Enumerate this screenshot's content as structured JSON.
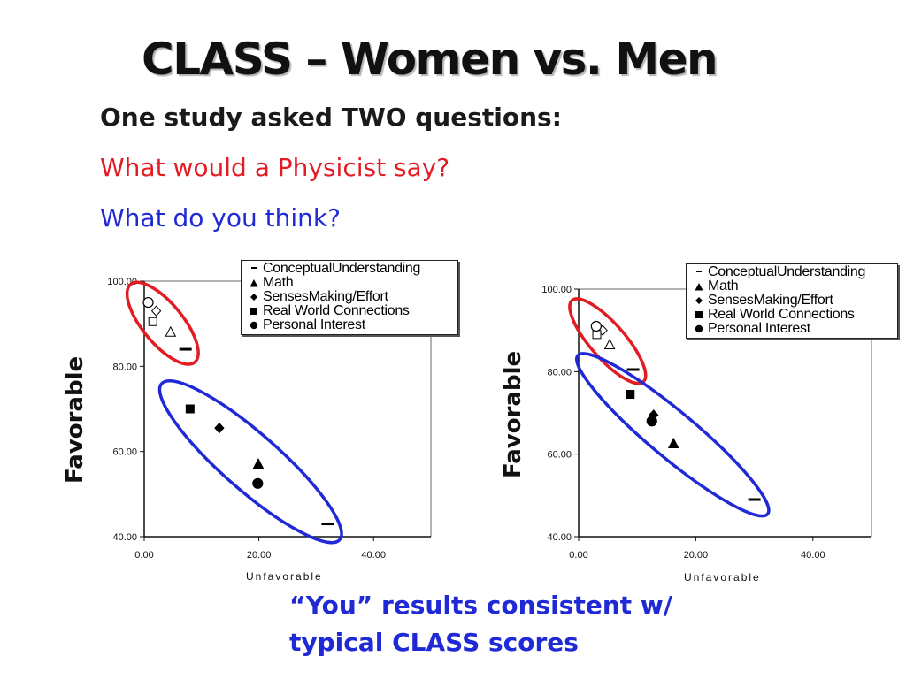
{
  "slide": {
    "title": "CLASS – Women vs. Men",
    "subtitle_lines": [
      "One study asked TWO questions:",
      "What would a Physicist say?",
      "What do you think?"
    ],
    "caption_lines": [
      "“You” results consistent w/",
      "typical CLASS scores"
    ],
    "colors": {
      "physicist_red": "#e31b23",
      "you_blue": "#1f2ad6"
    }
  },
  "chart_data": [
    {
      "type": "scatter",
      "xlabel": "Unfavorable",
      "ylabel": "Favorable",
      "xlim": [
        0,
        50
      ],
      "ylim": [
        40,
        100
      ],
      "xticks": [
        "0.00",
        "20.00",
        "40.00"
      ],
      "yticks": [
        "40.00",
        "60.00",
        "80.00",
        "100.00"
      ],
      "legend": {
        "placement": "top-right",
        "entries": [
          {
            "label": "ConceptualUnderstanding",
            "marker": "dash"
          },
          {
            "label": "Math",
            "marker": "triangle"
          },
          {
            "label": "SensesMaking/Effort",
            "marker": "diamond"
          },
          {
            "label": "Real World Connections",
            "marker": "square"
          },
          {
            "label": "Personal Interest",
            "marker": "circle"
          }
        ]
      },
      "series": [
        {
          "name": "ConceptualUnderstanding",
          "marker": "dash",
          "points": [
            {
              "x": 7.2,
              "y": 84,
              "group": "physicist"
            },
            {
              "x": 32.0,
              "y": 43,
              "group": "you"
            }
          ]
        },
        {
          "name": "Math",
          "marker": "triangle",
          "points": [
            {
              "x": 4.6,
              "y": 88,
              "group": "physicist"
            },
            {
              "x": 19.9,
              "y": 57,
              "group": "you"
            }
          ]
        },
        {
          "name": "SensesMaking/Effort",
          "marker": "diamond",
          "points": [
            {
              "x": 2.1,
              "y": 93,
              "group": "physicist"
            },
            {
              "x": 13.1,
              "y": 65.5,
              "group": "you"
            }
          ]
        },
        {
          "name": "Real World Connections",
          "marker": "square",
          "points": [
            {
              "x": 1.5,
              "y": 90.5,
              "group": "physicist"
            },
            {
              "x": 8.0,
              "y": 70,
              "group": "you"
            }
          ]
        },
        {
          "name": "Personal Interest",
          "marker": "circle",
          "points": [
            {
              "x": 0.7,
              "y": 95,
              "group": "physicist"
            },
            {
              "x": 19.8,
              "y": 52.5,
              "group": "you"
            }
          ]
        }
      ],
      "annotations": [
        {
          "kind": "ellipse",
          "group": "physicist",
          "color": "red"
        },
        {
          "kind": "ellipse",
          "group": "you",
          "color": "blue"
        }
      ]
    },
    {
      "type": "scatter",
      "xlabel": "Unfavorable",
      "ylabel": "Favorable",
      "xlim": [
        0,
        50
      ],
      "ylim": [
        40,
        100
      ],
      "xticks": [
        "0.00",
        "20.00",
        "40.00"
      ],
      "yticks": [
        "40.00",
        "60.00",
        "80.00",
        "100.00"
      ],
      "legend": {
        "placement": "top-right",
        "entries": [
          {
            "label": "ConceptualUnderstanding",
            "marker": "dash"
          },
          {
            "label": "Math",
            "marker": "triangle"
          },
          {
            "label": "SensesMaking/Effort",
            "marker": "diamond"
          },
          {
            "label": "Real World Connections",
            "marker": "square"
          },
          {
            "label": "Personal Interest",
            "marker": "circle"
          }
        ]
      },
      "series": [
        {
          "name": "ConceptualUnderstanding",
          "marker": "dash",
          "points": [
            {
              "x": 9.3,
              "y": 80.5,
              "group": "physicist"
            },
            {
              "x": 30.0,
              "y": 49,
              "group": "you"
            }
          ]
        },
        {
          "name": "Math",
          "marker": "triangle",
          "points": [
            {
              "x": 5.3,
              "y": 86.5,
              "group": "physicist"
            },
            {
              "x": 16.2,
              "y": 62.5,
              "group": "you"
            }
          ]
        },
        {
          "name": "SensesMaking/Effort",
          "marker": "diamond",
          "points": [
            {
              "x": 4.1,
              "y": 90,
              "group": "physicist"
            },
            {
              "x": 12.8,
              "y": 69.5,
              "group": "you"
            }
          ]
        },
        {
          "name": "Real World Connections",
          "marker": "square",
          "points": [
            {
              "x": 3.1,
              "y": 89,
              "group": "physicist"
            },
            {
              "x": 8.8,
              "y": 74.5,
              "group": "you"
            }
          ]
        },
        {
          "name": "Personal Interest",
          "marker": "circle",
          "points": [
            {
              "x": 3.0,
              "y": 91,
              "group": "physicist"
            },
            {
              "x": 12.5,
              "y": 68,
              "group": "you"
            }
          ]
        }
      ],
      "annotations": [
        {
          "kind": "ellipse",
          "group": "physicist",
          "color": "red"
        },
        {
          "kind": "ellipse",
          "group": "you",
          "color": "blue"
        }
      ]
    }
  ]
}
